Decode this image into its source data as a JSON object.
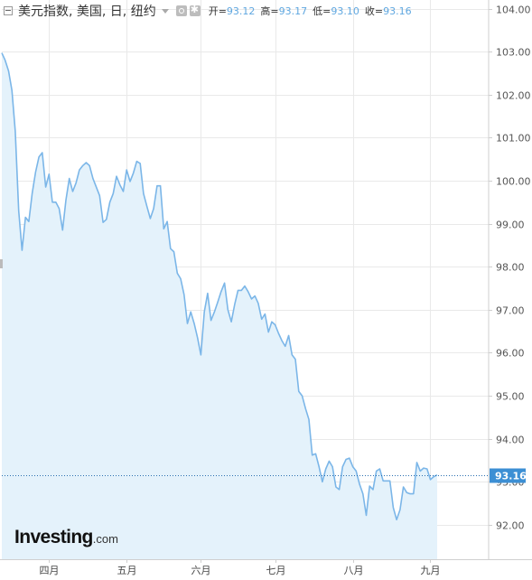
{
  "header": {
    "title": "美元指数, 美国, 日, 纽约",
    "open_label": "开=",
    "open": "93.12",
    "high_label": "高=",
    "high": "93.17",
    "low_label": "低=",
    "low": "93.10",
    "close_label": "收=",
    "close": "93.16"
  },
  "logo": {
    "brand": "Investing",
    "suffix": ".com"
  },
  "colors": {
    "line": "#7bb6e8",
    "area": "#e4f2fb",
    "label_bg": "#3c8fd4",
    "grid": "#e9e9e9"
  },
  "chart_data": {
    "type": "area",
    "y_ticks": [
      "104.00",
      "103.00",
      "102.00",
      "101.00",
      "100.00",
      "99.00",
      "98.00",
      "97.00",
      "96.00",
      "95.00",
      "94.00",
      "93.00",
      "92.00"
    ],
    "ylim": [
      91.2,
      104.2
    ],
    "x_ticks": [
      {
        "label": "四月",
        "x": 14
      },
      {
        "label": "五月",
        "x": 37
      },
      {
        "label": "六月",
        "x": 59
      },
      {
        "label": "七月",
        "x": 81
      },
      {
        "label": "八月",
        "x": 104
      },
      {
        "label": "九月",
        "x": 127
      }
    ],
    "xlim": [
      0,
      144
    ],
    "last_price": "93.16",
    "last_value": 93.16,
    "series": [
      {
        "values": [
          [
            0,
            102.97
          ],
          [
            1,
            102.8
          ],
          [
            2,
            102.55
          ],
          [
            3,
            102.1
          ],
          [
            4,
            101.15
          ],
          [
            5,
            99.3
          ],
          [
            6,
            98.38
          ],
          [
            7,
            99.15
          ],
          [
            8,
            99.05
          ],
          [
            9,
            99.7
          ],
          [
            10,
            100.2
          ],
          [
            11,
            100.55
          ],
          [
            12,
            100.65
          ],
          [
            13,
            99.85
          ],
          [
            14,
            100.15
          ],
          [
            15,
            99.5
          ],
          [
            16,
            99.5
          ],
          [
            17,
            99.35
          ],
          [
            18,
            98.85
          ],
          [
            19,
            99.55
          ],
          [
            20,
            100.05
          ],
          [
            21,
            99.75
          ],
          [
            22,
            99.95
          ],
          [
            23,
            100.25
          ],
          [
            24,
            100.35
          ],
          [
            25,
            100.42
          ],
          [
            26,
            100.35
          ],
          [
            27,
            100.05
          ],
          [
            28,
            99.85
          ],
          [
            29,
            99.65
          ],
          [
            30,
            99.03
          ],
          [
            31,
            99.1
          ],
          [
            32,
            99.5
          ],
          [
            33,
            99.7
          ],
          [
            34,
            100.1
          ],
          [
            35,
            99.9
          ],
          [
            36,
            99.75
          ],
          [
            37,
            100.25
          ],
          [
            38,
            99.98
          ],
          [
            39,
            100.18
          ],
          [
            40,
            100.45
          ],
          [
            41,
            100.4
          ],
          [
            42,
            99.7
          ],
          [
            43,
            99.4
          ],
          [
            44,
            99.12
          ],
          [
            45,
            99.35
          ],
          [
            46,
            99.88
          ],
          [
            47,
            99.88
          ],
          [
            48,
            98.88
          ],
          [
            49,
            99.05
          ],
          [
            50,
            98.42
          ],
          [
            51,
            98.35
          ],
          [
            52,
            97.85
          ],
          [
            53,
            97.72
          ],
          [
            54,
            97.35
          ],
          [
            55,
            96.68
          ],
          [
            56,
            96.95
          ],
          [
            57,
            96.68
          ],
          [
            58,
            96.35
          ],
          [
            59,
            95.95
          ],
          [
            60,
            96.95
          ],
          [
            61,
            97.38
          ],
          [
            62,
            96.75
          ],
          [
            63,
            96.95
          ],
          [
            64,
            97.18
          ],
          [
            65,
            97.42
          ],
          [
            66,
            97.62
          ],
          [
            67,
            97.0
          ],
          [
            68,
            96.72
          ],
          [
            69,
            97.12
          ],
          [
            70,
            97.45
          ],
          [
            71,
            97.45
          ],
          [
            72,
            97.55
          ],
          [
            73,
            97.42
          ],
          [
            74,
            97.25
          ],
          [
            75,
            97.32
          ],
          [
            76,
            97.15
          ],
          [
            77,
            96.78
          ],
          [
            78,
            96.9
          ],
          [
            79,
            96.48
          ],
          [
            80,
            96.72
          ],
          [
            81,
            96.65
          ],
          [
            82,
            96.45
          ],
          [
            83,
            96.28
          ],
          [
            84,
            96.15
          ],
          [
            85,
            96.4
          ],
          [
            86,
            95.95
          ],
          [
            87,
            95.85
          ],
          [
            88,
            95.1
          ],
          [
            89,
            95.0
          ],
          [
            90,
            94.7
          ],
          [
            91,
            94.45
          ],
          [
            92,
            93.62
          ],
          [
            93,
            93.65
          ],
          [
            94,
            93.35
          ],
          [
            95,
            93.0
          ],
          [
            96,
            93.3
          ],
          [
            97,
            93.48
          ],
          [
            98,
            93.35
          ],
          [
            99,
            92.88
          ],
          [
            100,
            92.82
          ],
          [
            101,
            93.35
          ],
          [
            102,
            93.52
          ],
          [
            103,
            93.55
          ],
          [
            104,
            93.35
          ],
          [
            105,
            93.25
          ],
          [
            106,
            92.95
          ],
          [
            107,
            92.72
          ],
          [
            108,
            92.22
          ],
          [
            109,
            92.9
          ],
          [
            110,
            92.82
          ],
          [
            111,
            93.25
          ],
          [
            112,
            93.3
          ],
          [
            113,
            93.02
          ],
          [
            114,
            93.02
          ],
          [
            115,
            93.02
          ],
          [
            116,
            92.4
          ],
          [
            117,
            92.12
          ],
          [
            118,
            92.35
          ],
          [
            119,
            92.88
          ],
          [
            120,
            92.75
          ],
          [
            121,
            92.72
          ],
          [
            122,
            92.72
          ],
          [
            123,
            93.45
          ],
          [
            124,
            93.25
          ],
          [
            125,
            93.32
          ],
          [
            126,
            93.3
          ],
          [
            127,
            93.05
          ],
          [
            128,
            93.12
          ],
          [
            129,
            93.16
          ]
        ]
      }
    ]
  }
}
